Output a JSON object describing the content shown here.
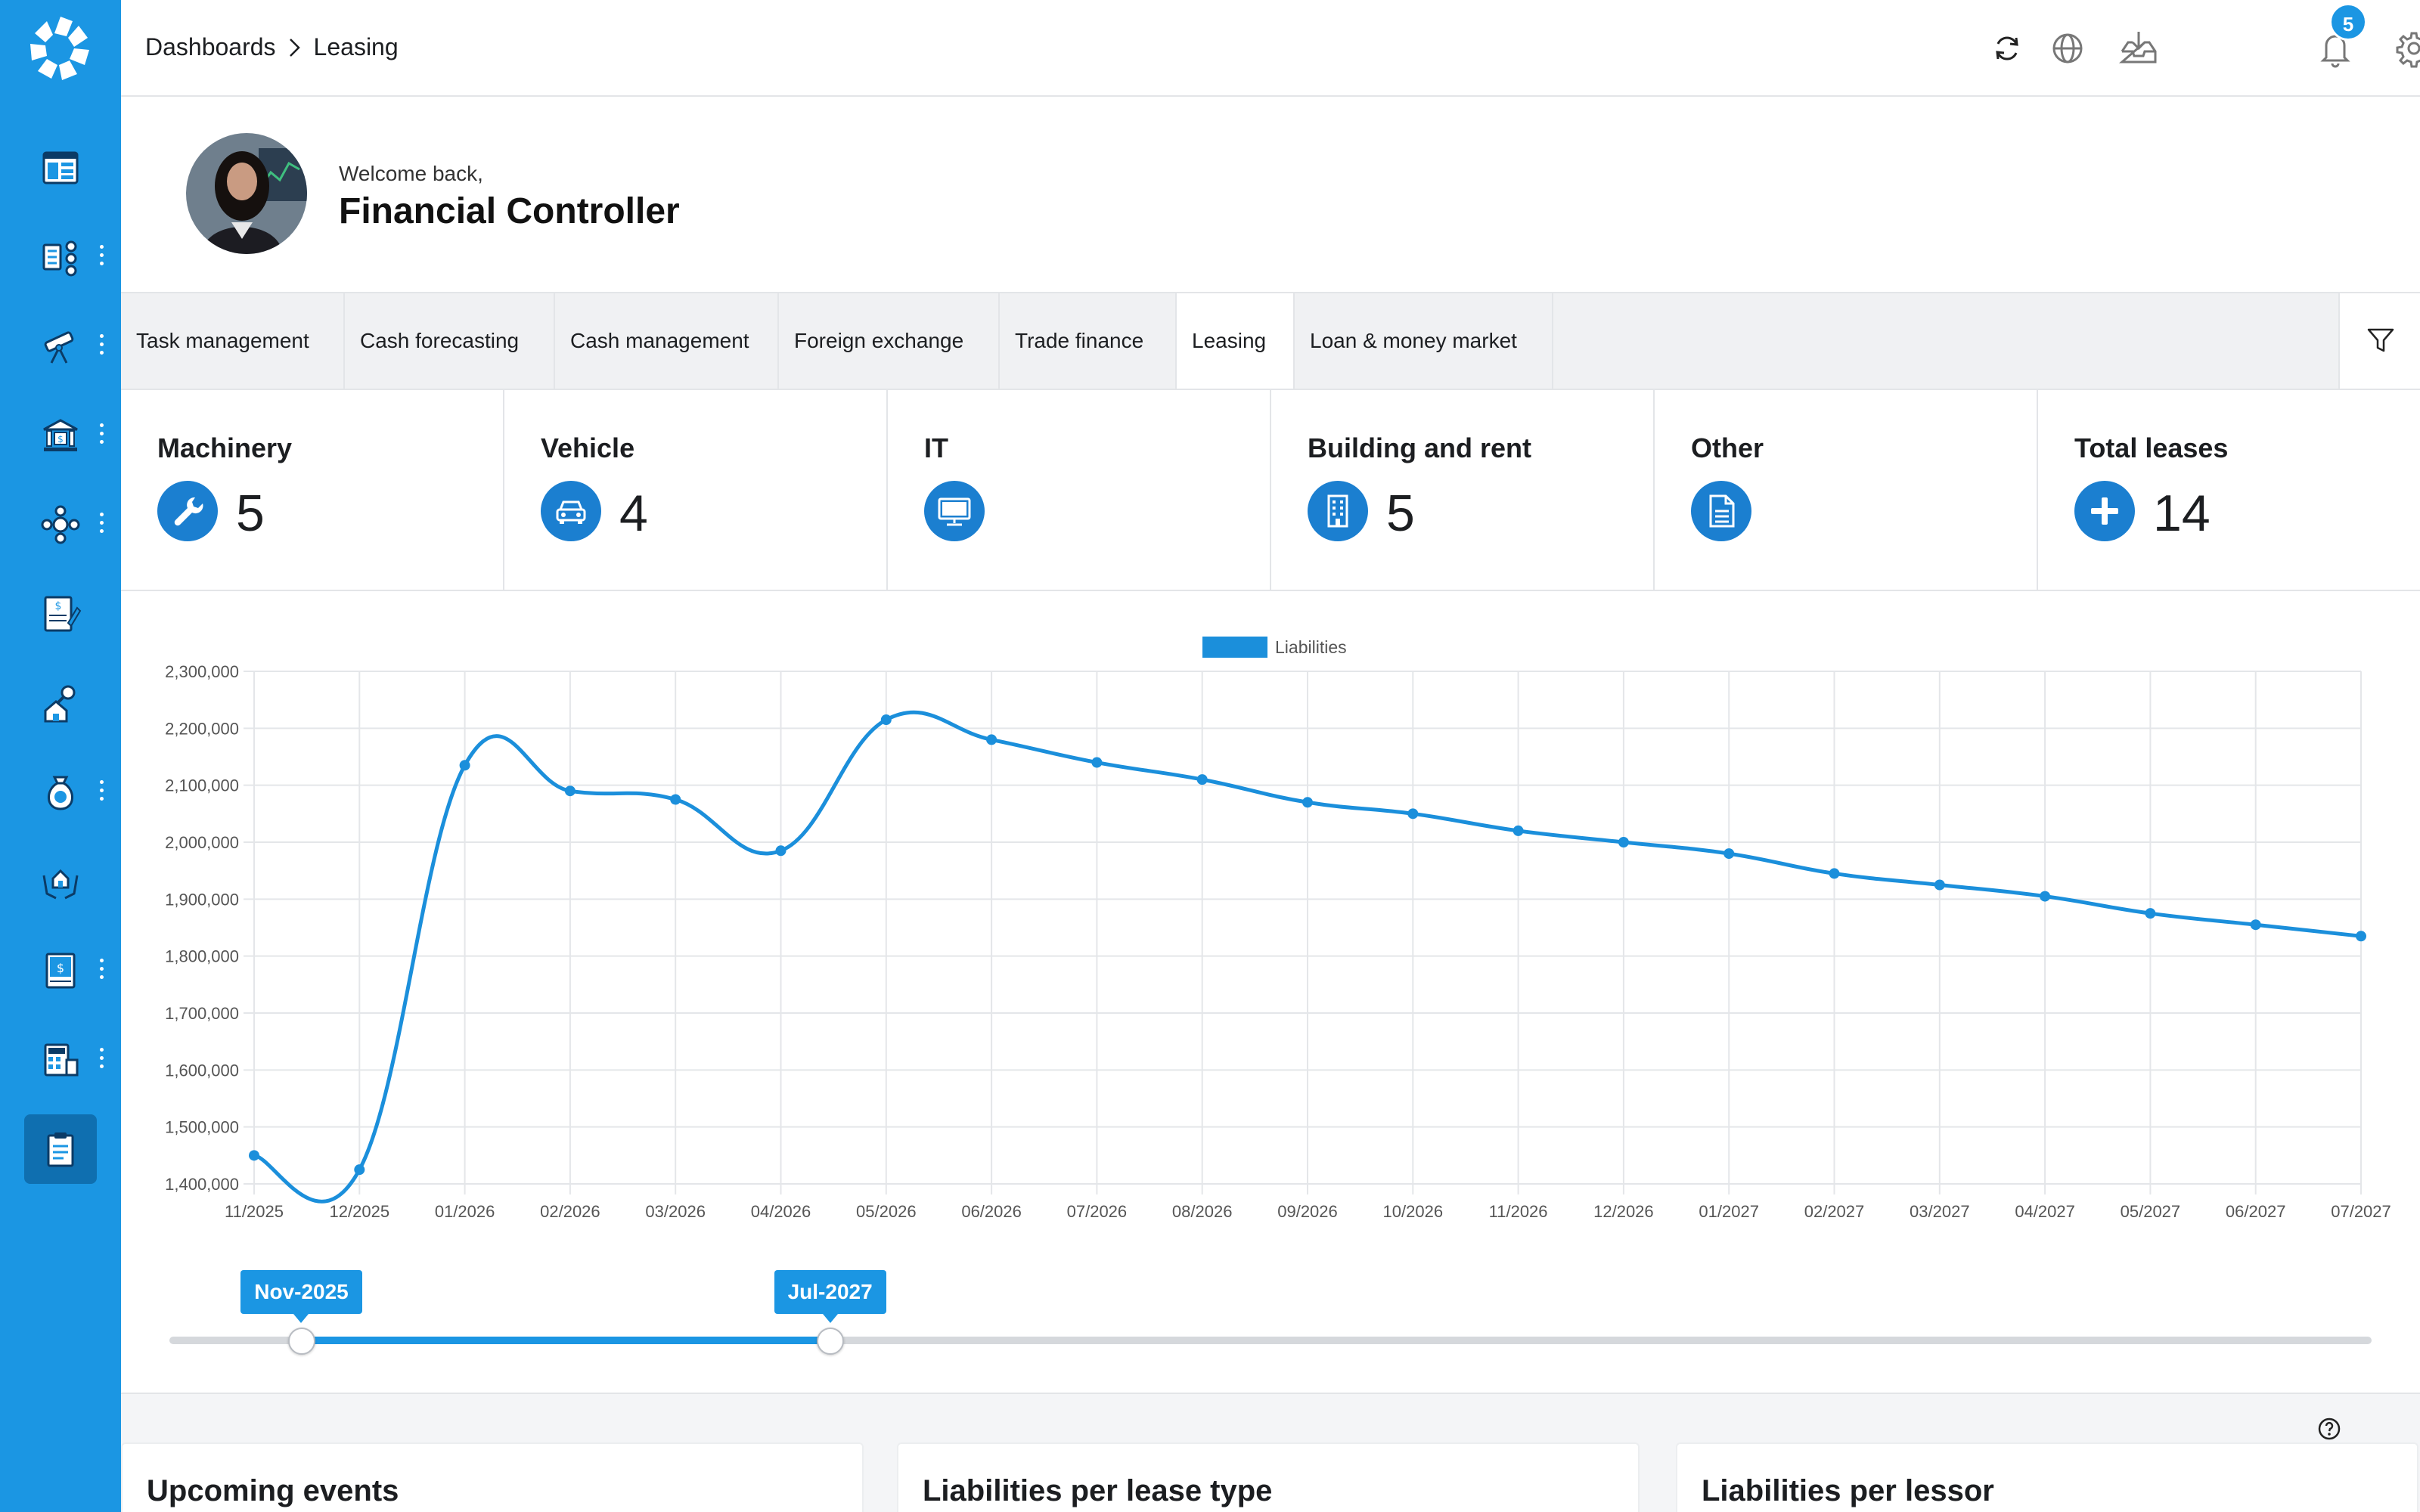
{
  "breadcrumb": {
    "root": "Dashboards",
    "current": "Leasing"
  },
  "notifications": {
    "count": "5"
  },
  "welcome": {
    "greeting": "Welcome back,",
    "name": "Financial Controller"
  },
  "tabs": [
    {
      "label": "Task management"
    },
    {
      "label": "Cash forecasting"
    },
    {
      "label": "Cash management"
    },
    {
      "label": "Foreign exchange"
    },
    {
      "label": "Trade finance"
    },
    {
      "label": "Leasing",
      "active": true
    },
    {
      "label": "Loan & money market"
    }
  ],
  "kpis": [
    {
      "label": "Machinery",
      "value": "5",
      "icon": "wrench-icon"
    },
    {
      "label": "Vehicle",
      "value": "4",
      "icon": "car-icon"
    },
    {
      "label": "IT",
      "value": "",
      "icon": "monitor-icon"
    },
    {
      "label": "Building and rent",
      "value": "5",
      "icon": "building-icon"
    },
    {
      "label": "Other",
      "value": "",
      "icon": "document-icon"
    },
    {
      "label": "Total leases",
      "value": "14",
      "icon": "plus-icon"
    }
  ],
  "chart_data": {
    "type": "line",
    "title": "",
    "xlabel": "",
    "ylabel": "",
    "legend": {
      "position": "top",
      "entries": [
        "Liabilities"
      ]
    },
    "grid": true,
    "ylim": [
      1400000,
      2300000
    ],
    "yticks": [
      "2,300,000",
      "2,200,000",
      "2,100,000",
      "2,000,000",
      "1,900,000",
      "1,800,000",
      "1,700,000",
      "1,600,000",
      "1,500,000",
      "1,400,000"
    ],
    "ytick_values": [
      2300000,
      2200000,
      2100000,
      2000000,
      1900000,
      1800000,
      1700000,
      1600000,
      1500000,
      1400000
    ],
    "categories": [
      "11/2025",
      "12/2025",
      "01/2026",
      "02/2026",
      "03/2026",
      "04/2026",
      "05/2026",
      "06/2026",
      "07/2026",
      "08/2026",
      "09/2026",
      "10/2026",
      "11/2026",
      "12/2026",
      "01/2027",
      "02/2027",
      "03/2027",
      "04/2027",
      "05/2027",
      "06/2027",
      "07/2027"
    ],
    "series": [
      {
        "name": "Liabilities",
        "color": "#1b8fdb",
        "values": [
          1450000,
          1425000,
          2135000,
          2090000,
          2075000,
          1985000,
          2215000,
          2180000,
          2140000,
          2110000,
          2070000,
          2050000,
          2020000,
          2000000,
          1980000,
          1945000,
          1925000,
          1905000,
          1875000,
          1855000,
          1835000
        ]
      }
    ]
  },
  "range_slider": {
    "start_label": "Nov-2025",
    "end_label": "Jul-2027",
    "start_fraction": 0.06,
    "end_fraction": 0.3
  },
  "bottom_cards": [
    {
      "title": "Upcoming events"
    },
    {
      "title": "Liabilities per lease type"
    },
    {
      "title": "Liabilities per lessor"
    }
  ],
  "colors": {
    "accent": "#1b96e3",
    "sidebar": "#1b96e3",
    "active_nav": "#0f6fb0",
    "kpi_icon": "#1b7fd0"
  }
}
